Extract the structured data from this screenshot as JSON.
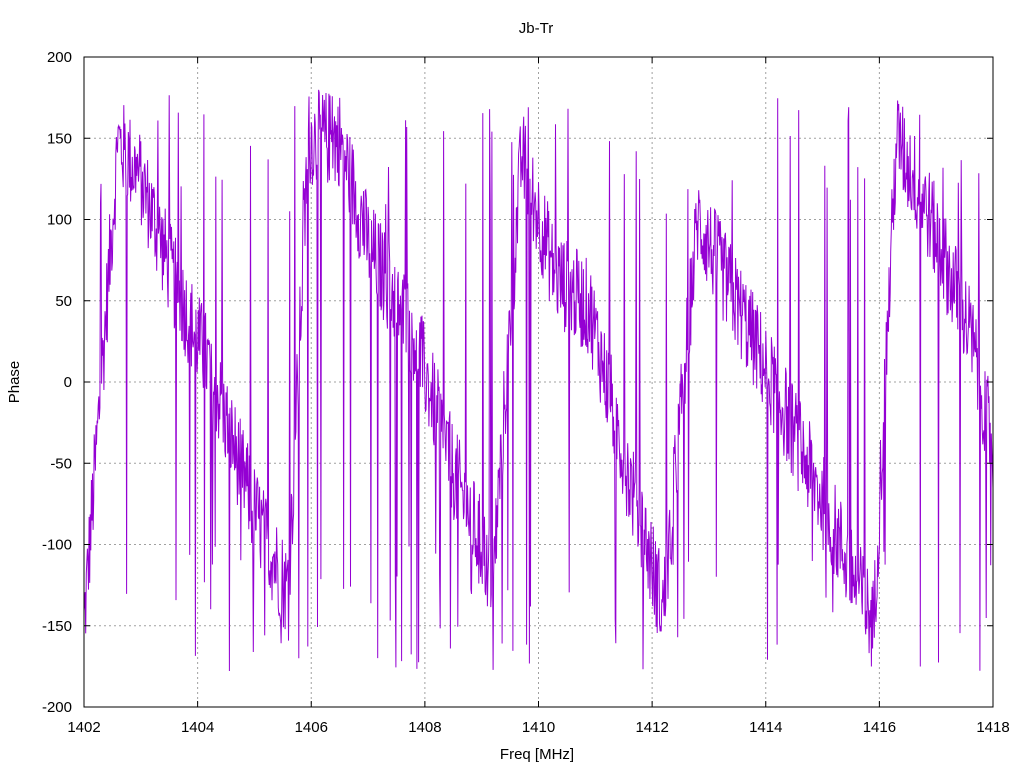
{
  "chart_data": {
    "type": "line",
    "title": "Jb-Tr",
    "xlabel": "Freq [MHz]",
    "ylabel": "Phase",
    "xlim": [
      1402,
      1418
    ],
    "ylim": [
      -200,
      200
    ],
    "xticks": [
      1402,
      1404,
      1406,
      1408,
      1410,
      1412,
      1414,
      1416,
      1418
    ],
    "yticks": [
      -200,
      -150,
      -100,
      -50,
      0,
      50,
      100,
      150,
      200
    ],
    "grid": true,
    "legend": "none",
    "line_color": "#9400d3",
    "phase_trend": {
      "x": [
        1402.0,
        1402.6,
        1403.0,
        1403.6,
        1404.2,
        1405.0,
        1405.6,
        1405.95,
        1406.5,
        1407.0,
        1407.8,
        1408.5,
        1409.2,
        1409.7,
        1410.3,
        1410.9,
        1411.6,
        1412.2,
        1412.8,
        1413.6,
        1414.3,
        1415.2,
        1415.9,
        1416.3,
        1416.8,
        1417.6,
        1418.0
      ],
      "y": [
        -150,
        148,
        125,
        60,
        10,
        -80,
        -130,
        150,
        150,
        85,
        30,
        -55,
        -120,
        140,
        65,
        45,
        -60,
        -140,
        100,
        40,
        -15,
        -90,
        -150,
        150,
        110,
        30,
        -40
      ]
    }
  }
}
